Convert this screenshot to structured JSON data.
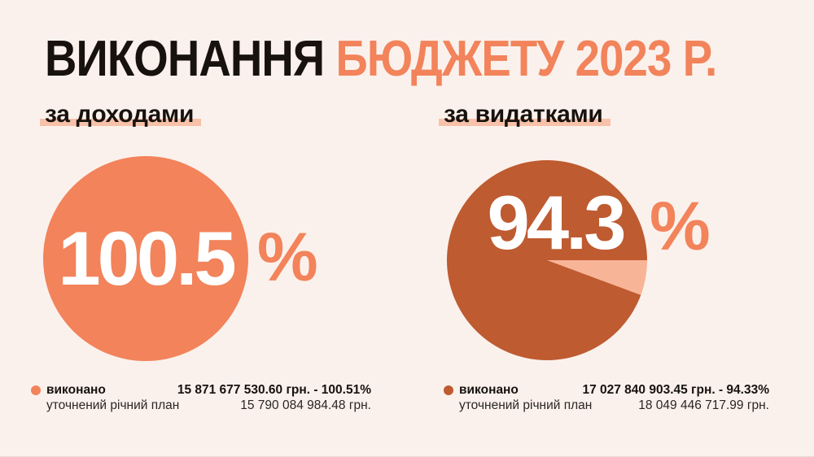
{
  "colors": {
    "background": "#FBF1EC",
    "title_dark": "#17120E",
    "accent": "#F2835B",
    "pie_dark": "#BE5B30",
    "pie_light_wedge": "#F8B497",
    "highlight": "#F7C2A9"
  },
  "title": {
    "black_part": "ВИКОНАННЯ ",
    "orange_part": "БЮДЖЕТУ 2023 Р."
  },
  "charts": [
    {
      "subtitle": "за доходами",
      "big_percent": "100.5",
      "percent_sign": "%",
      "pie": {
        "start_deg": 90,
        "segments": [
          {
            "color": "#F2835B",
            "deg": 360
          }
        ]
      },
      "dot_color": "#F2835B",
      "legend": {
        "executed_label": "виконано",
        "executed_value": "15 871 677 530.60 грн. - 100.51%",
        "plan_label": "уточнений річний план",
        "plan_value": "15 790 084 984.48 грн."
      }
    },
    {
      "subtitle": "за видатками",
      "big_percent": "94.3",
      "percent_sign": "%",
      "pie": {
        "start_deg": 90,
        "segments": [
          {
            "color": "#F8B497",
            "deg": 20.4
          },
          {
            "color": "#BE5B30",
            "deg": 339.6
          }
        ]
      },
      "dot_color": "#BE5B30",
      "legend": {
        "executed_label": "виконано",
        "executed_value": "17 027 840 903.45 грн. - 94.33%",
        "plan_label": "уточнений річний план",
        "plan_value": "18 049 446 717.99 грн."
      }
    }
  ],
  "chart_data": [
    {
      "type": "pie",
      "title": "за доходами",
      "center_label": "100.5 %",
      "execution_rate_percent": 100.51,
      "slices": [
        {
          "label": "виконано",
          "percent": 100.51,
          "color": "#F2835B"
        }
      ],
      "executed_amount": "15 871 677 530.60 грн.",
      "plan_label": "уточнений річний план",
      "plan_amount": "15 790 084 984.48 грн.",
      "legend_position": "bottom"
    },
    {
      "type": "pie",
      "title": "за видатками",
      "center_label": "94.3 %",
      "execution_rate_percent": 94.33,
      "slices": [
        {
          "label": "виконано",
          "percent": 94.33,
          "color": "#BE5B30"
        },
        {
          "label": "remainder",
          "percent": 5.67,
          "color": "#F8B497"
        }
      ],
      "executed_amount": "17 027 840 903.45 грн.",
      "plan_label": "уточнений річний план",
      "plan_amount": "18 049 446 717.99 грн.",
      "legend_position": "bottom"
    }
  ]
}
